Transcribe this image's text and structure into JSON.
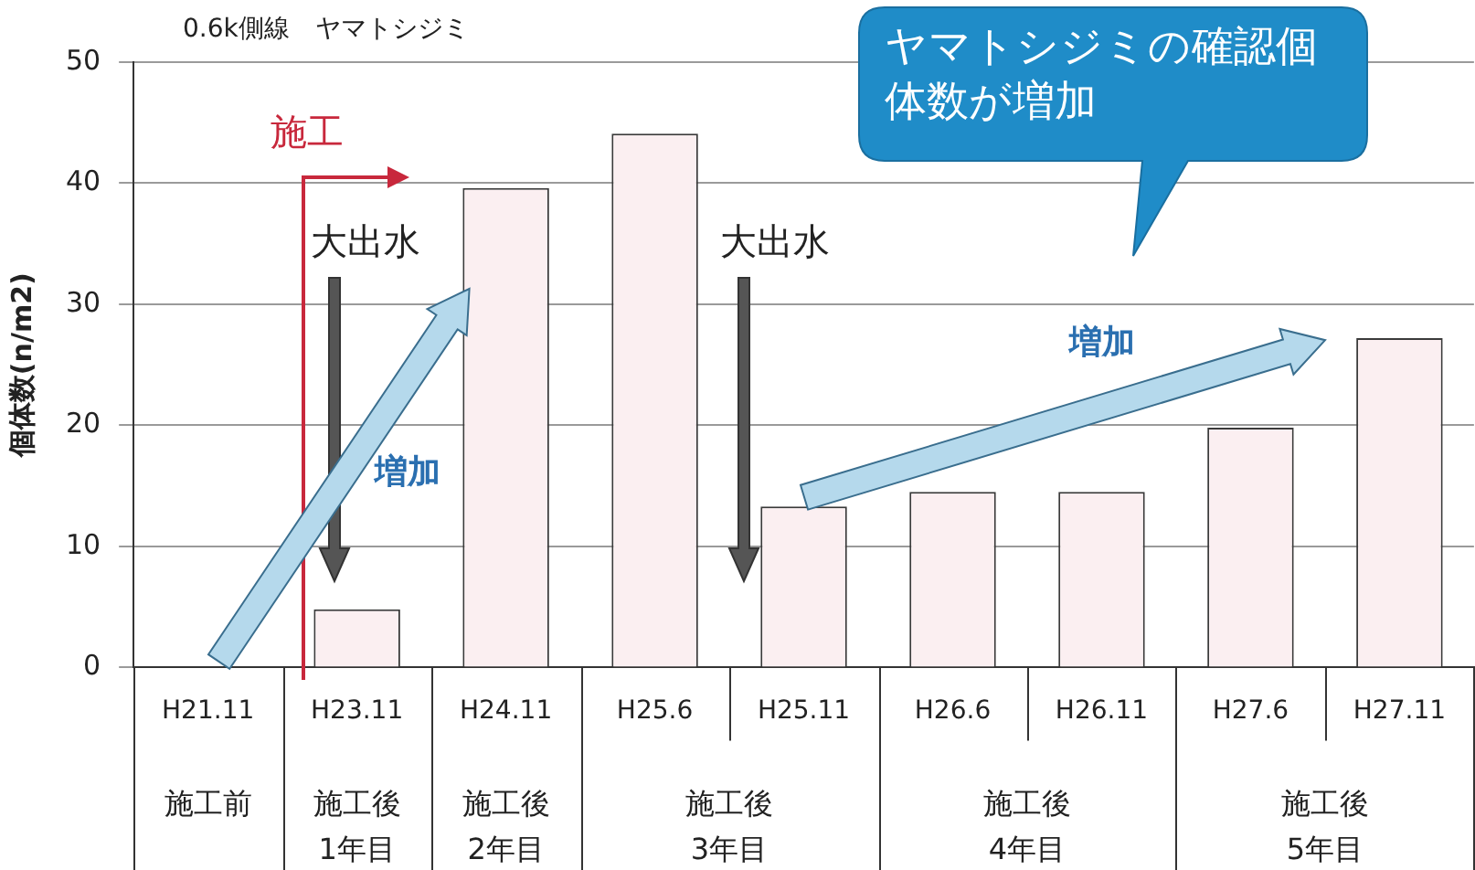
{
  "chart_data": {
    "type": "bar",
    "title": "0.6k側線　ヤマトシジミ",
    "ylabel": "個体数(n/m2)",
    "categories": [
      "H21.11",
      "H23.11",
      "H24.11",
      "H25.6",
      "H25.11",
      "H26.6",
      "H26.11",
      "H27.6",
      "H27.11"
    ],
    "values": [
      0,
      4.8,
      39.6,
      44.1,
      13.3,
      14.5,
      14.5,
      19.8,
      27.2
    ],
    "color": "#fbeff1",
    "ylim": [
      0,
      50
    ],
    "yticks": [
      0,
      10,
      20,
      30,
      40,
      50
    ],
    "grid": "y",
    "legend": false,
    "annotations": [
      "施工",
      "大出水",
      "大出水",
      "増加",
      "増加",
      "ヤマトシジミの確認個体数が増加",
      "施工前",
      "施工後\n1年目",
      "施工後\n2年目",
      "施工後\n3年目",
      "施工後\n4年目",
      "施工後\n5年目"
    ]
  }
}
